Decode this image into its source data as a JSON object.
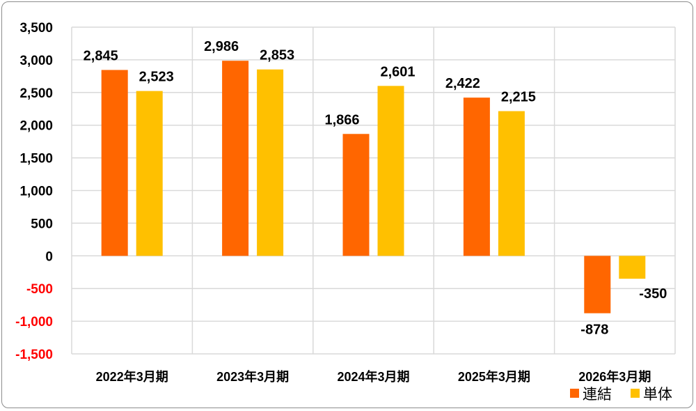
{
  "chart_data": {
    "type": "bar",
    "categories": [
      "2022年3月期",
      "2023年3月期",
      "2024年3月期",
      "2025年3月期",
      "2026年3月期"
    ],
    "series": [
      {
        "name": "連結",
        "values": [
          2845,
          2986,
          1866,
          2422,
          -878
        ],
        "color": "#ff6600"
      },
      {
        "name": "単体",
        "values": [
          2523,
          2853,
          2601,
          2215,
          -350
        ],
        "color": "#ffc000"
      }
    ],
    "data_labels": [
      [
        "2,845",
        "2,986",
        "1,866",
        "2,422",
        "-878"
      ],
      [
        "2,523",
        "2,853",
        "2,601",
        "2,215",
        "-350"
      ]
    ],
    "y_ticks": [
      3500,
      3000,
      2500,
      2000,
      1500,
      1000,
      500,
      0,
      -500,
      -1000,
      -1500
    ],
    "y_tick_labels": [
      "3,500",
      "3,000",
      "2,500",
      "2,000",
      "1,500",
      "1,000",
      "500",
      "0",
      "-500",
      "-1,000",
      "-1,500"
    ],
    "negative_tick_color": "#ff0000",
    "ylim": [
      -1500,
      3500
    ],
    "grid": true,
    "legend_position": "bottom-right"
  }
}
